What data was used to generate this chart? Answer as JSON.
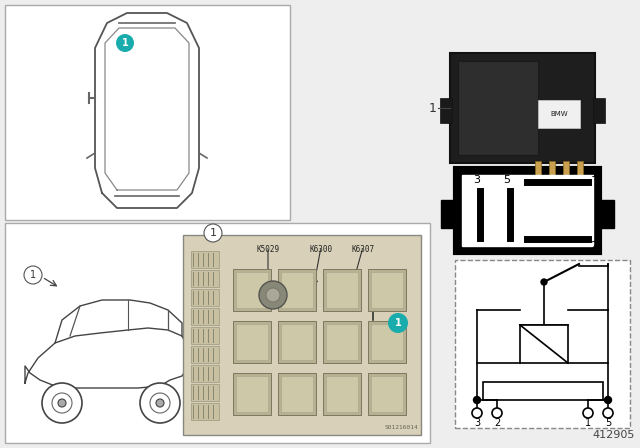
{
  "bg_color": "#eeeeee",
  "white": "#ffffff",
  "black": "#000000",
  "teal": "#1aacac",
  "part_number": "412905",
  "fuse_labels": [
    "K5029",
    "K6300",
    "K6307"
  ],
  "pin_labels": [
    "3",
    "2",
    "1",
    "5"
  ],
  "relay_img_color": "#222222",
  "relay_inner": "#383838",
  "fuse_box_bg": "#d8d0b8",
  "fuse_stripe_color": "#b0a890",
  "relay_block_color": "#b8b090",
  "relay_block_inner": "#ccc8a8"
}
